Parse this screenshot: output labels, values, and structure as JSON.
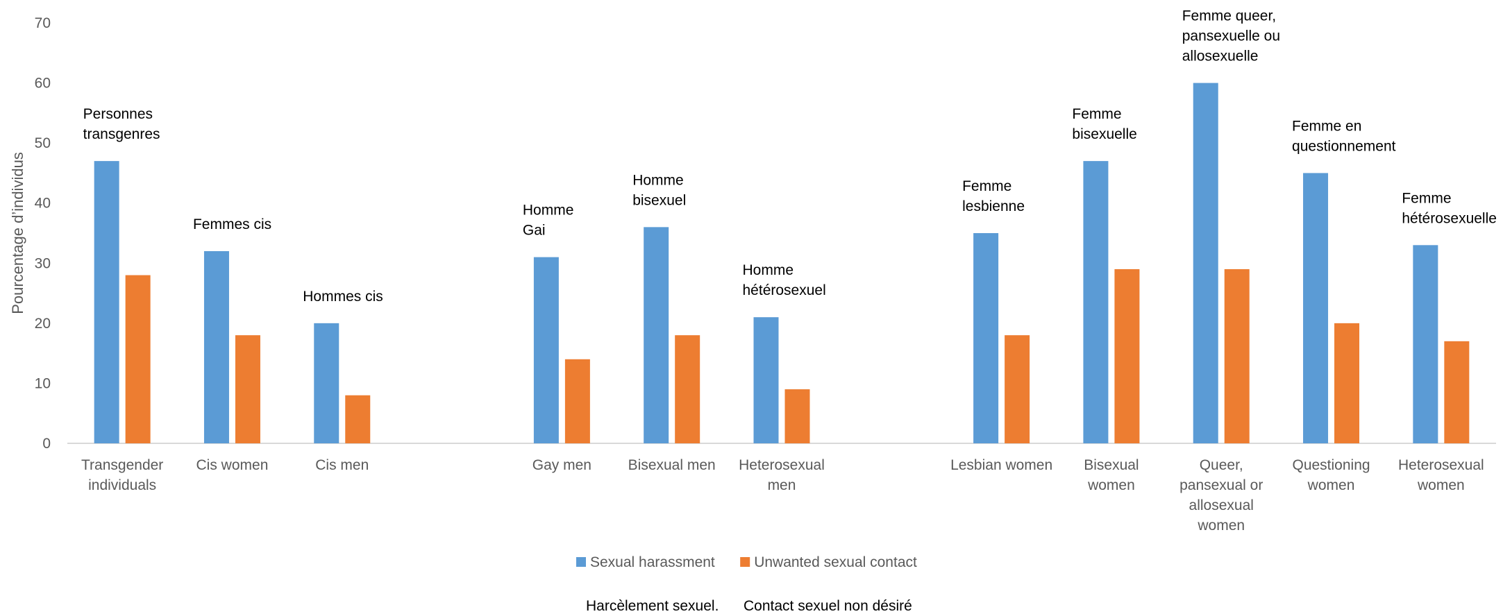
{
  "chart_data": {
    "type": "bar",
    "ylabel": "Pourcentage d’individus",
    "ylim": [
      0,
      70
    ],
    "yticks": [
      0,
      10,
      20,
      30,
      40,
      50,
      60,
      70
    ],
    "grid": false,
    "legend_position": "bottom",
    "colors": {
      "Sexual harassment": "#5B9BD5",
      "Unwanted sexual contact": "#ED7D31"
    },
    "categories": [
      {
        "label": [
          "Transgender",
          "individuals"
        ],
        "annotation": [
          "Personnes",
          "transgenres"
        ]
      },
      {
        "label": [
          "Cis women"
        ],
        "annotation": [
          "Femmes cis"
        ]
      },
      {
        "label": [
          "Cis men"
        ],
        "annotation": [
          "Hommes cis"
        ]
      },
      null,
      {
        "label": [
          "Gay men"
        ],
        "annotation": [
          "Homme",
          "Gai"
        ]
      },
      {
        "label": [
          "Bisexual men"
        ],
        "annotation": [
          "Homme",
          "bisexuel"
        ]
      },
      {
        "label": [
          "Heterosexual",
          "men"
        ],
        "annotation": [
          "Homme",
          "hétérosexuel"
        ]
      },
      null,
      {
        "label": [
          "Lesbian women"
        ],
        "annotation": [
          "Femme",
          "lesbienne"
        ]
      },
      {
        "label": [
          "Bisexual",
          "women"
        ],
        "annotation": [
          "Femme",
          "bisexuelle"
        ]
      },
      {
        "label": [
          "Queer,",
          "pansexual or",
          "allosexual",
          "women"
        ],
        "annotation": [
          "Femme queer,",
          "pansexuelle ou",
          "allosexuelle"
        ]
      },
      {
        "label": [
          "Questioning",
          "women"
        ],
        "annotation": [
          "Femme en",
          "questionnement"
        ]
      },
      {
        "label": [
          "Heterosexual",
          "women"
        ],
        "annotation": [
          "Femme",
          "hétérosexuelle"
        ]
      }
    ],
    "series": [
      {
        "name": "Sexual harassment",
        "values": [
          47,
          32,
          20,
          null,
          31,
          36,
          21,
          null,
          35,
          47,
          60,
          45,
          33
        ]
      },
      {
        "name": "Unwanted sexual contact",
        "values": [
          28,
          18,
          8,
          null,
          14,
          18,
          9,
          null,
          18,
          29,
          29,
          20,
          17
        ]
      }
    ],
    "legend_translation": [
      "Harcèlement sexuel.",
      "Contact sexuel non désiré"
    ]
  }
}
